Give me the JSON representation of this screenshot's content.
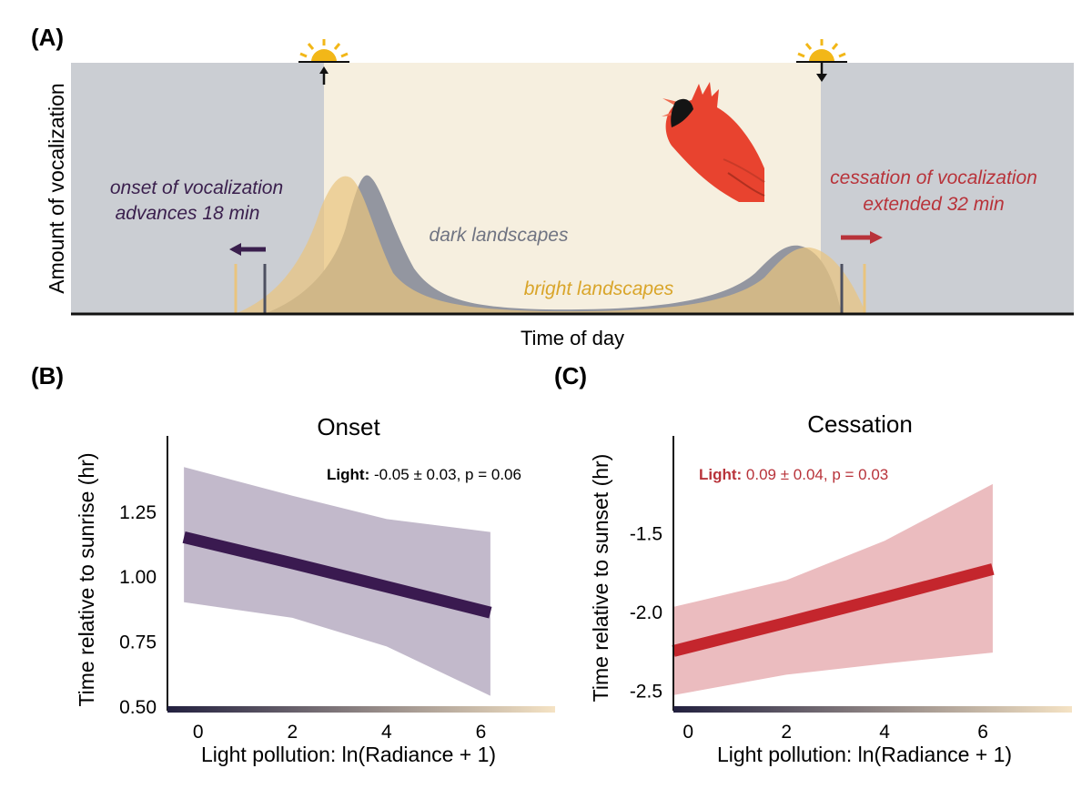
{
  "panel_labels": {
    "a": "(A)",
    "b": "(B)",
    "c": "(C)"
  },
  "colors": {
    "night": "#cbced3",
    "day": "#f6efdf",
    "dark_curve": "#9396a0",
    "bright_curve": "#e9c47e",
    "bright_fill": "#d7b57f",
    "onset_accent": "#3a1f4d",
    "cessation_accent": "#b8333a",
    "bright_text": "#d9a52a",
    "dark_text": "#707482",
    "onset_band": "#c2b9cb",
    "onset_line": "#3a1a50",
    "cessation_band": "#ebbcbf",
    "cessation_line": "#c4262d",
    "sun": "#f2b718",
    "gradient_start": "#22203f",
    "gradient_end": "#f5e3c4"
  },
  "panel_a": {
    "ylabel": "Amount of vocalization",
    "xlabel": "Time of day",
    "onset_text": [
      "onset of vocalization",
      "advances 18 min"
    ],
    "cessation_text": [
      "cessation of vocalization",
      "extended 32 min"
    ],
    "dark_label": "dark landscapes",
    "bright_label": "bright landscapes",
    "sunrise_icon": "sunrise-icon",
    "sunset_icon": "sunset-icon",
    "bird_icon": "cardinal-bird-icon",
    "onset_shift_min": 18,
    "cessation_shift_min": 32
  },
  "chart_data": [
    {
      "type": "line",
      "panel": "B",
      "title": "Onset",
      "xlabel": "Light pollution: ln(Radiance + 1)",
      "ylabel": "Time relative to sunrise (hr)",
      "xlim": [
        -0.65,
        7.65
      ],
      "ylim": [
        0.5,
        1.47
      ],
      "xticks": [
        0,
        2,
        4,
        6
      ],
      "xtick_labels": [
        "0",
        "2",
        "4",
        "6"
      ],
      "yticks": [
        0.5,
        0.75,
        1.0,
        1.25
      ],
      "ytick_labels": [
        "0.50",
        "0.75",
        "1.00",
        "1.25"
      ],
      "annotation_bold": "Light:",
      "annotation_rest": " -0.05 ± 0.03, p = 0.06",
      "annotation_color": "#111111",
      "x": [
        -0.3,
        2,
        4,
        6.2
      ],
      "fit": [
        1.15,
        1.05,
        0.96,
        0.86
      ],
      "upper": [
        1.42,
        1.31,
        1.22,
        1.17
      ],
      "lower": [
        0.9,
        0.84,
        0.73,
        0.54
      ],
      "grid": false,
      "legend": "none"
    },
    {
      "type": "line",
      "panel": "C",
      "title": "Cessation",
      "xlabel": "Light pollution: ln(Radiance + 1)",
      "ylabel": "Time relative to sunset (hr)",
      "xlim": [
        -0.3,
        7.85
      ],
      "ylim": [
        -2.6,
        -1.0
      ],
      "xticks": [
        0,
        2,
        4,
        6
      ],
      "xtick_labels": [
        "0",
        "2",
        "4",
        "6"
      ],
      "yticks": [
        -2.5,
        -2.0,
        -1.5
      ],
      "ytick_labels": [
        "-2.5",
        "-2.0",
        "-1.5"
      ],
      "annotation_bold": "Light:",
      "annotation_rest": " 0.09 ± 0.04, p = 0.03",
      "annotation_color": "#b8333a",
      "x": [
        -0.3,
        2,
        4,
        6.2
      ],
      "fit": [
        -2.25,
        -2.07,
        -1.91,
        -1.73
      ],
      "upper": [
        -1.97,
        -1.8,
        -1.55,
        -1.19
      ],
      "lower": [
        -2.53,
        -2.4,
        -2.33,
        -2.26
      ],
      "grid": false,
      "legend": "none"
    }
  ]
}
